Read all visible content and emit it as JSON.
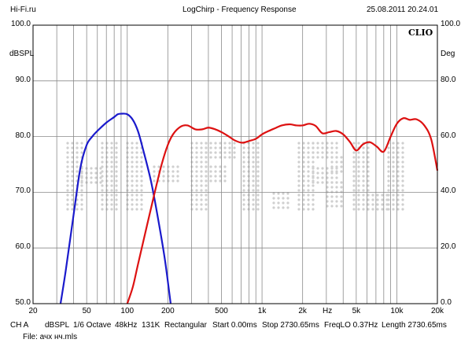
{
  "header": {
    "site": "Hi-Fi.ru",
    "title": "LogChirp - Frequency Response",
    "datetime": "25.08.2011 20.24.01"
  },
  "brand": "CLIO",
  "watermark": "HI-FI.RU",
  "footer": {
    "line1": [
      "CH A",
      "dBSPL",
      "1/6 Octave",
      "48kHz",
      "131K",
      "Rectangular",
      "Start 0.00ms",
      "Stop 2730.65ms",
      "FreqLO 0.37Hz",
      "Length 2730.65ms"
    ],
    "file": "File: ачх нч.mls"
  },
  "colors": {
    "grid": "#8a8a8a",
    "series_blue": "#1a1acc",
    "series_red": "#dd1111",
    "watermark": "#cfcfcf"
  },
  "chart_data": {
    "type": "line",
    "xscale": "log",
    "xlim": [
      20,
      20000
    ],
    "ylim": [
      50,
      100
    ],
    "ylabel": "dBSPL",
    "ylabel_right": "Deg",
    "xlabel": "Hz",
    "grid": true,
    "y_ticks": [
      "100.0",
      "90.0",
      "80.0",
      "70.0",
      "60.0",
      "50.0"
    ],
    "y_ticks_right": [
      "100.0",
      "80.0",
      "60.0",
      "40.0",
      "20.0",
      "0.0"
    ],
    "x_ticks": [
      {
        "v": 20,
        "label": "20"
      },
      {
        "v": 50,
        "label": "50"
      },
      {
        "v": 100,
        "label": "100"
      },
      {
        "v": 200,
        "label": "200"
      },
      {
        "v": 500,
        "label": "500"
      },
      {
        "v": 1000,
        "label": "1k"
      },
      {
        "v": 2000,
        "label": "2k"
      },
      {
        "v": 5000,
        "label": "5k"
      },
      {
        "v": 10000,
        "label": "10k"
      },
      {
        "v": 20000,
        "label": "20k"
      }
    ],
    "series": [
      {
        "color": "#1a1acc",
        "x": [
          32,
          35,
          40,
          45,
          50,
          55,
          60,
          70,
          80,
          85,
          90,
          100,
          110,
          120,
          130,
          150,
          170,
          190,
          210
        ],
        "y": [
          50,
          56,
          66,
          74.5,
          78.5,
          80,
          81,
          82.5,
          83.5,
          84,
          84.1,
          84,
          83,
          81,
          78,
          72,
          65,
          58,
          50
        ]
      },
      {
        "color": "#dd1111",
        "x": [
          100,
          110,
          120,
          140,
          160,
          180,
          200,
          220,
          250,
          280,
          320,
          360,
          400,
          450,
          500,
          560,
          630,
          710,
          800,
          900,
          1000,
          1120,
          1250,
          1400,
          1600,
          1800,
          2000,
          2240,
          2500,
          2800,
          3150,
          3550,
          4000,
          4500,
          5000,
          5600,
          6300,
          7100,
          8000,
          9000,
          10000,
          11200,
          12500,
          14000,
          16000,
          18000,
          20000
        ],
        "y": [
          50,
          53,
          57,
          64,
          70,
          75,
          78.5,
          80.5,
          81.8,
          82,
          81.3,
          81.3,
          81.6,
          81.3,
          80.8,
          80.1,
          79.3,
          78.9,
          79.2,
          79.6,
          80.4,
          81.0,
          81.5,
          82.0,
          82.2,
          82.0,
          82.0,
          82.3,
          81.9,
          80.6,
          80.8,
          81.0,
          80.4,
          79.0,
          77.5,
          78.6,
          79.0,
          78.2,
          77.3,
          80.0,
          82.3,
          83.3,
          83.0,
          83.1,
          82.0,
          79.5,
          73.9
        ]
      }
    ]
  }
}
